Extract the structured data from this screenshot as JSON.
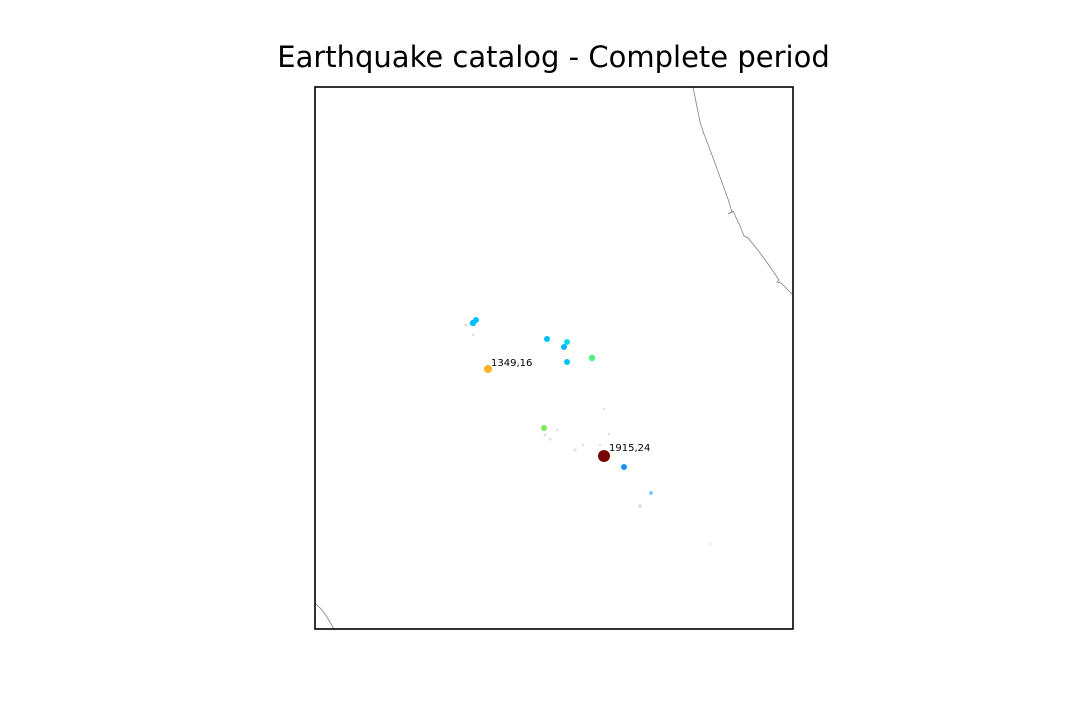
{
  "title": "Earthquake catalog - Complete period",
  "map": {
    "coastline_color": "#808080",
    "frame_color": "#000000",
    "events": [
      {
        "label": "",
        "color": "#00bfff",
        "opacity": 1.0
      },
      {
        "label": "",
        "color": "#00bfff",
        "opacity": 1.0
      },
      {
        "label": "",
        "color": "#c0c0d0",
        "opacity": 0.5
      },
      {
        "label": "",
        "color": "#c0c0d0",
        "opacity": 0.5
      },
      {
        "label": "",
        "color": "#00bfff",
        "opacity": 1.0
      },
      {
        "label": "",
        "color": "#00d8e8",
        "opacity": 1.0
      },
      {
        "label": "",
        "color": "#00b8f0",
        "opacity": 1.0
      },
      {
        "label": "",
        "color": "#00c4f4",
        "opacity": 1.0
      },
      {
        "label": "",
        "color": "#55ee77",
        "opacity": 1.0
      },
      {
        "label": "1349,16",
        "color": "#ffb020",
        "opacity": 1.0
      },
      {
        "label": "",
        "color": "#c0c0d0",
        "opacity": 0.5
      },
      {
        "label": "",
        "color": "#77ee55",
        "opacity": 1.0
      },
      {
        "label": "",
        "color": "#c0c0d0",
        "opacity": 0.5
      },
      {
        "label": "",
        "color": "#c0c0d0",
        "opacity": 0.5
      },
      {
        "label": "",
        "color": "#c0c0d0",
        "opacity": 0.5
      },
      {
        "label": "",
        "color": "#c0c0d0",
        "opacity": 0.5
      },
      {
        "label": "",
        "color": "#c0c0d0",
        "opacity": 0.5
      },
      {
        "label": "",
        "color": "#c0c0d0",
        "opacity": 0.5
      },
      {
        "label": "",
        "color": "#c0c0d0",
        "opacity": 0.5
      },
      {
        "label": "1915,24",
        "color": "#7a0000",
        "opacity": 1.0
      },
      {
        "label": "",
        "color": "#1e90ff",
        "opacity": 1.0
      },
      {
        "label": "",
        "color": "#87c8ff",
        "opacity": 1.0
      },
      {
        "label": "",
        "color": "#b0d4f0",
        "opacity": 0.8
      },
      {
        "label": "",
        "color": "#c0c0d0",
        "opacity": 0.5
      }
    ]
  }
}
